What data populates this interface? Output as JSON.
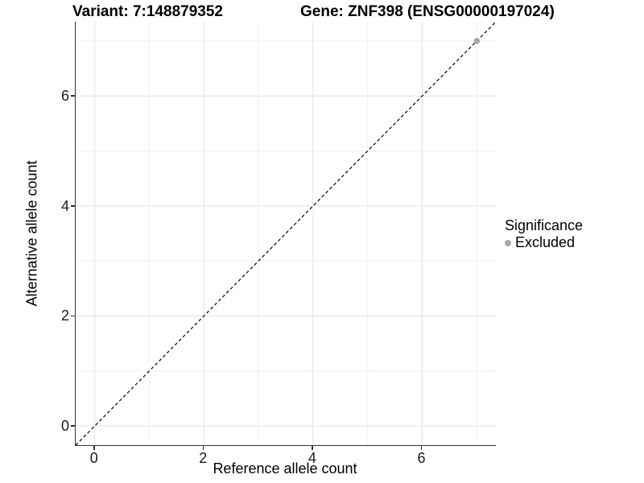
{
  "titles": {
    "variant": "Variant: 7:148879352",
    "gene": "Gene: ZNF398 (ENSG00000197024)"
  },
  "axes": {
    "x_label": "Reference allele count",
    "y_label": "Alternative allele count"
  },
  "legend": {
    "title": "Significance",
    "items": [
      {
        "label": "Excluded",
        "color": "#a8a8a8"
      }
    ]
  },
  "chart_data": {
    "type": "scatter",
    "title": "Variant: 7:148879352   Gene: ZNF398 (ENSG00000197024)",
    "xlabel": "Reference allele count",
    "ylabel": "Alternative allele count",
    "xlim": [
      -0.35,
      7.35
    ],
    "ylim": [
      -0.35,
      7.35
    ],
    "x_major_ticks": [
      0,
      2,
      4,
      6
    ],
    "x_minor_ticks": [
      1,
      3,
      5,
      7
    ],
    "y_major_ticks": [
      0,
      2,
      4,
      6
    ],
    "y_minor_ticks": [
      1,
      3,
      5,
      7
    ],
    "series": [
      {
        "name": "Excluded",
        "points": [
          [
            7,
            7
          ]
        ],
        "color": "#a8a8a8"
      }
    ],
    "reference_line": {
      "type": "identity",
      "slope": 1,
      "intercept": 0,
      "style": "dashed",
      "color": "#000000"
    },
    "grid": true,
    "legend_position": "right",
    "colors": {
      "grid_major": "#e3e3e3",
      "grid_minor": "#f0f0f0",
      "axis_line": "#333333",
      "tick_text": "#1a1a1a",
      "background": "#ffffff"
    }
  }
}
